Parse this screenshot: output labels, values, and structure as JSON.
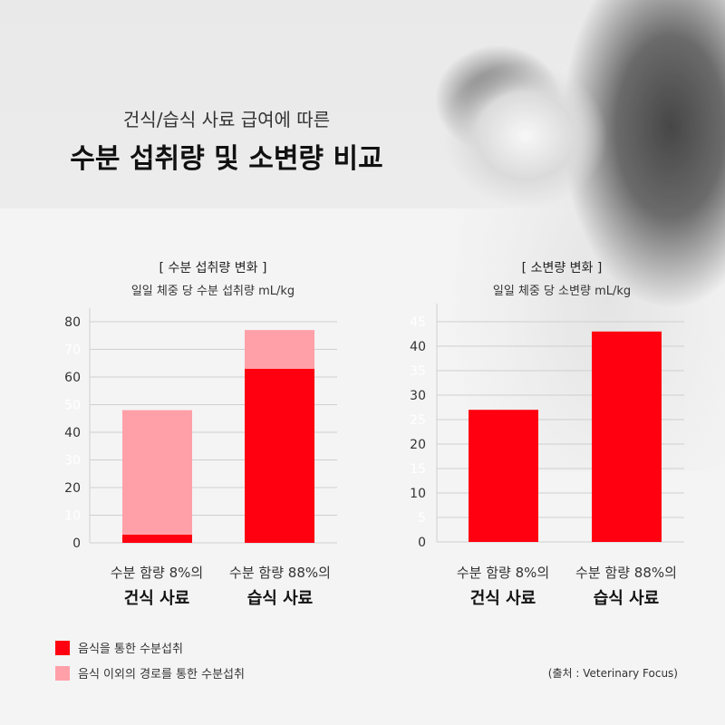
{
  "header": {
    "subtitle": "건식/습식 사료 급여에 따른",
    "title": "수분 섭취량 및 소변량 비교"
  },
  "colors": {
    "food": "#ff0010",
    "other": "#ffa0a8",
    "grid": "#cfcfcf",
    "tick": "#333333",
    "tick_minor": "#ffffff"
  },
  "chart_data": [
    {
      "type": "bar",
      "stacked": true,
      "title": "[ 수분 섭취량 변화 ]",
      "ylabel": "일일 체중 당 수분 섭취량 mL/kg",
      "ylim": [
        0,
        80
      ],
      "yticks": [
        "0",
        "10",
        "20",
        "30",
        "40",
        "50",
        "60",
        "70",
        "80"
      ],
      "ytick_values": [
        0,
        10,
        20,
        30,
        40,
        50,
        60,
        70,
        80
      ],
      "categories": [
        {
          "line1": "수분 함량 8%의",
          "line2": "건식 사료"
        },
        {
          "line1": "수분 함량 88%의",
          "line2": "습식 사료"
        }
      ],
      "series": [
        {
          "name": "음식을 통한 수분섭취",
          "values": [
            3,
            63
          ]
        },
        {
          "name": "음식 이외의 경로를 통한 수분섭취",
          "values": [
            45,
            14
          ]
        }
      ]
    },
    {
      "type": "bar",
      "stacked": false,
      "title": "[ 소변량 변화 ]",
      "ylabel": "일일 체중 당 소변량 mL/kg",
      "ylim": [
        0,
        45
      ],
      "yticks": [
        "0",
        "5",
        "10",
        "15",
        "20",
        "25",
        "30",
        "35",
        "40",
        "45"
      ],
      "ytick_values": [
        0,
        5,
        10,
        15,
        20,
        25,
        30,
        35,
        40,
        45
      ],
      "categories": [
        {
          "line1": "수분 함량 8%의",
          "line2": "건식 사료"
        },
        {
          "line1": "수분 함량 88%의",
          "line2": "습식 사료"
        }
      ],
      "series": [
        {
          "name": "소변량",
          "values": [
            27,
            43
          ]
        }
      ]
    }
  ],
  "legend": [
    {
      "label": "음식을 통한 수분섭취"
    },
    {
      "label": "음식 이외의 경로를 통한 수분섭취"
    }
  ],
  "source": "(출처 : Veterinary Focus)"
}
